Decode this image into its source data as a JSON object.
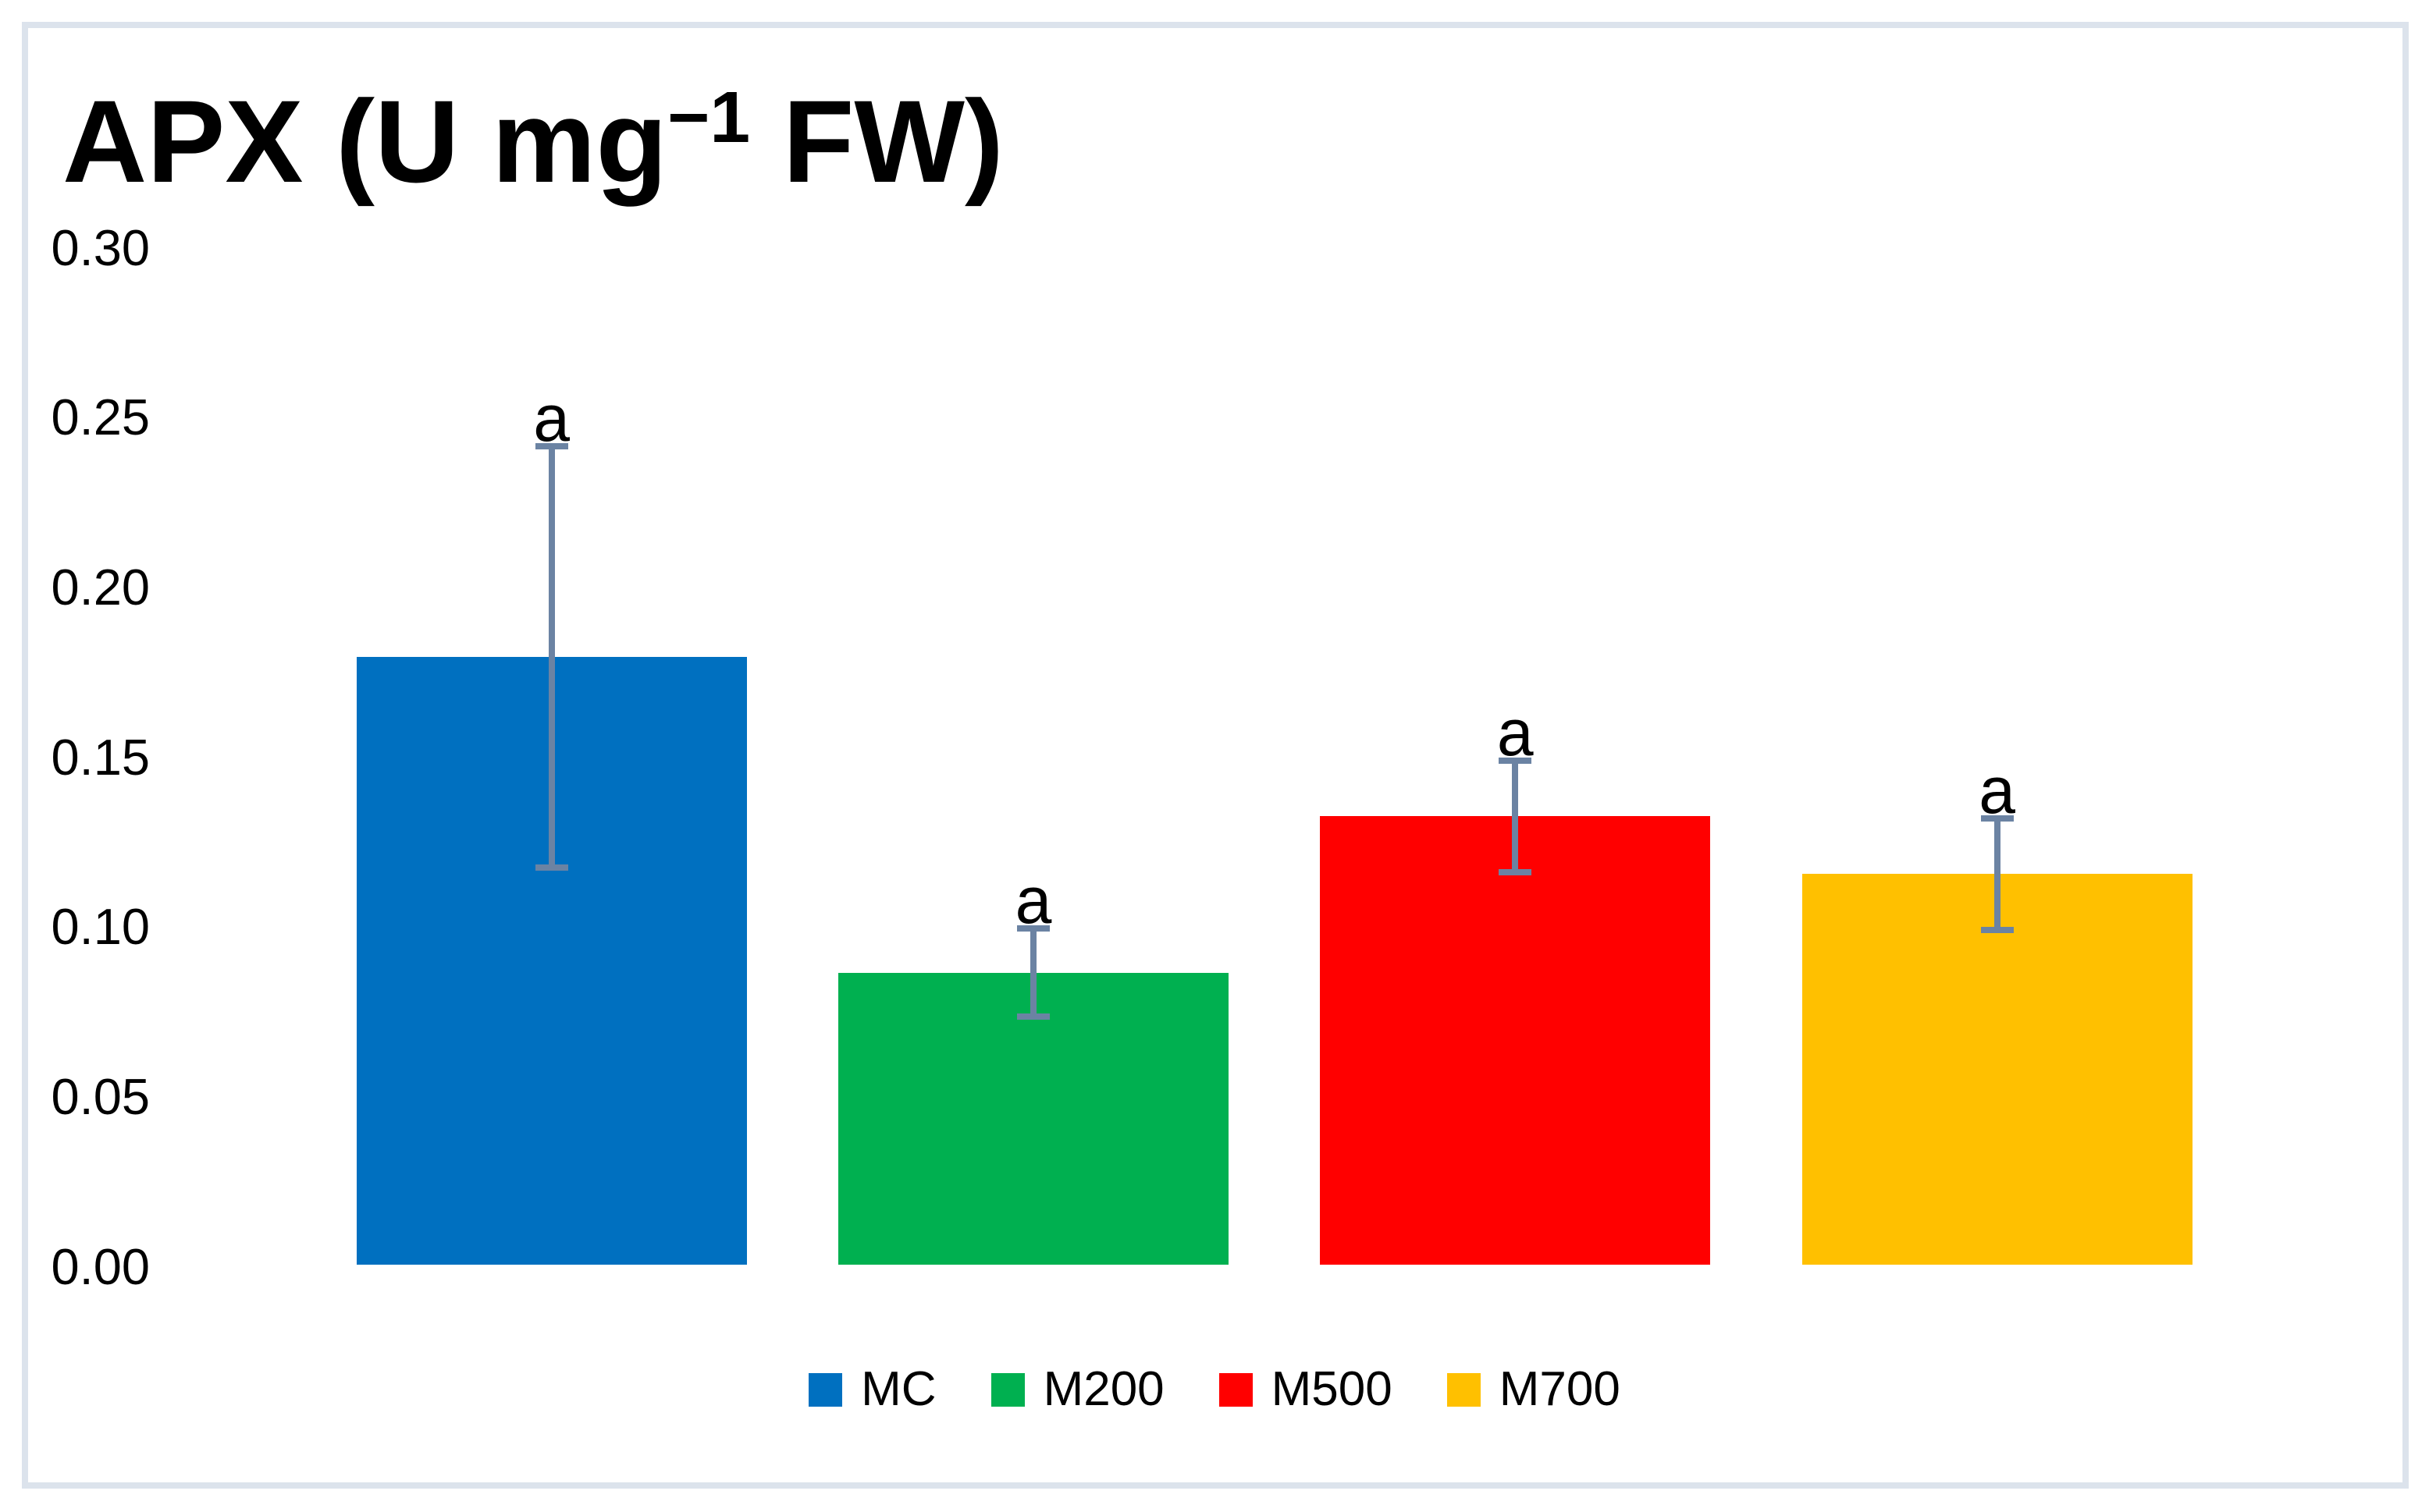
{
  "chart_data": {
    "type": "bar",
    "title": {
      "text": "APX (U mg⁻¹ FW)",
      "prefix": "APX (U mg",
      "superscript": "−1",
      "suffix": " FW)"
    },
    "categories": [
      "MC",
      "M200",
      "M500",
      "M700"
    ],
    "series": [
      {
        "name": "APX",
        "values": [
          0.179,
          0.086,
          0.132,
          0.115
        ]
      }
    ],
    "error_bars": {
      "type": "symmetric",
      "values": [
        0.062,
        0.013,
        0.0165,
        0.0165
      ]
    },
    "significance_labels": [
      "a",
      "a",
      "a",
      "a"
    ],
    "bar_colors": [
      "#0070C0",
      "#00B050",
      "#FF0000",
      "#FFC000"
    ],
    "error_bar_color": "#6b83a3",
    "xlabel": "",
    "ylabel": "",
    "ylim": [
      0,
      0.3
    ],
    "y_ticks": [
      {
        "value": 0.0,
        "label": "0.00"
      },
      {
        "value": 0.05,
        "label": "0.05"
      },
      {
        "value": 0.1,
        "label": "0.10"
      },
      {
        "value": 0.15,
        "label": "0.15"
      },
      {
        "value": 0.2,
        "label": "0.20"
      },
      {
        "value": 0.25,
        "label": "0.25"
      },
      {
        "value": 0.3,
        "label": "0.30"
      }
    ],
    "grid": "off",
    "axis_lines": "none",
    "legend": {
      "position": "bottom",
      "entries": [
        "MC",
        "M200",
        "M500",
        "M700"
      ]
    }
  },
  "frame": {
    "border_color": "#dce3ec",
    "background": "#ffffff"
  }
}
